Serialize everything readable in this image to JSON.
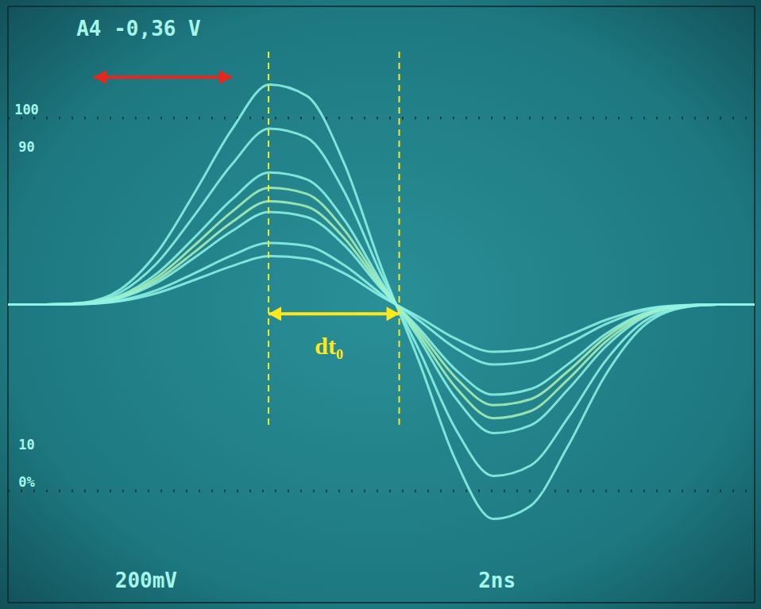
{
  "chart_data": {
    "type": "line",
    "x": [
      0,
      1,
      2,
      3,
      4,
      5,
      6,
      7,
      8,
      9,
      10,
      11,
      12,
      13,
      14,
      15,
      16,
      17,
      18,
      19,
      20
    ],
    "series": [
      {
        "color": "#8ff5e6",
        "values": [
          0,
          0,
          5,
          40,
          140,
          300,
          470,
          590,
          560,
          380,
          100,
          -150,
          -420,
          -575,
          -540,
          -380,
          -190,
          -60,
          -10,
          0,
          0
        ]
      },
      {
        "color": "#8ff5e6",
        "values": [
          0,
          0,
          4,
          32,
          112,
          240,
          376,
          472,
          448,
          304,
          80,
          -120,
          -336,
          -460,
          -432,
          -304,
          -152,
          -48,
          -8,
          0,
          0
        ]
      },
      {
        "color": "#8ff5e6",
        "values": [
          0,
          0,
          3,
          24,
          84,
          180,
          282,
          354,
          336,
          228,
          60,
          -90,
          -252,
          -345,
          -324,
          -228,
          -114,
          -36,
          -6,
          0,
          0
        ]
      },
      {
        "color": "#a9f2b8",
        "values": [
          0,
          0,
          3,
          21,
          74,
          159,
          249,
          313,
          297,
          201,
          53,
          -80,
          -223,
          -305,
          -286,
          -201,
          -101,
          -32,
          -5,
          0,
          0
        ]
      },
      {
        "color": "#a9f2b8",
        "values": [
          0,
          0,
          2,
          19,
          66,
          141,
          221,
          277,
          263,
          179,
          47,
          -71,
          -197,
          -270,
          -254,
          -179,
          -89,
          -28,
          -5,
          0,
          0
        ]
      },
      {
        "color": "#8ff5e6",
        "values": [
          0,
          0,
          2,
          17,
          59,
          126,
          197,
          248,
          235,
          160,
          42,
          -63,
          -176,
          -242,
          -227,
          -160,
          -80,
          -25,
          -4,
          0,
          0
        ]
      },
      {
        "color": "#8ff5e6",
        "values": [
          0,
          0,
          1,
          11,
          39,
          84,
          132,
          165,
          157,
          106,
          28,
          -42,
          -118,
          -161,
          -151,
          -106,
          -53,
          -17,
          -3,
          0,
          0
        ]
      },
      {
        "color": "#8ff5e6",
        "values": [
          0,
          0,
          1,
          9,
          31,
          66,
          103,
          130,
          123,
          84,
          22,
          -33,
          -92,
          -127,
          -119,
          -84,
          -42,
          -13,
          -2,
          0,
          0
        ]
      }
    ],
    "xlim": [
      0,
      20
    ],
    "ylim": [
      -800,
      800
    ],
    "xticks": [
      0,
      2,
      4,
      6,
      8,
      10,
      12,
      14,
      16,
      18,
      20
    ],
    "yticks": [
      -800,
      -600,
      -400,
      -200,
      0,
      200,
      400,
      600,
      800
    ],
    "grid": true,
    "tick_labels": false,
    "reference_lines": [
      500,
      -500
    ],
    "annotations": [
      {
        "text": "A4  -0,36 V",
        "x": 3.5,
        "y": 740
      },
      {
        "text": "200mV",
        "x": 3.7,
        "y": -740
      },
      {
        "text": "2ns",
        "x": 13.1,
        "y": -740
      },
      {
        "text": "100",
        "x": 0.5,
        "y": 500
      },
      {
        "text": "90",
        "x": 0.5,
        "y": 400
      },
      {
        "text": "10",
        "x": 0.5,
        "y": -400
      },
      {
        "text": "0%",
        "x": 0.5,
        "y": -500
      },
      {
        "text": "dt₀",
        "x": 8.6,
        "y": -110,
        "color": "#ffe81a"
      }
    ],
    "arrows": [
      {
        "x": [
          2.3,
          6.0
        ],
        "y": 610,
        "color": "#e8261c"
      },
      {
        "x": [
          6.98,
          10.48
        ],
        "y": -25,
        "color": "#ffe81a"
      }
    ],
    "dashed_lines": {
      "x": [
        6.98,
        10.48
      ],
      "y": [
        -323,
        687
      ],
      "color": "#ffe81a"
    }
  }
}
